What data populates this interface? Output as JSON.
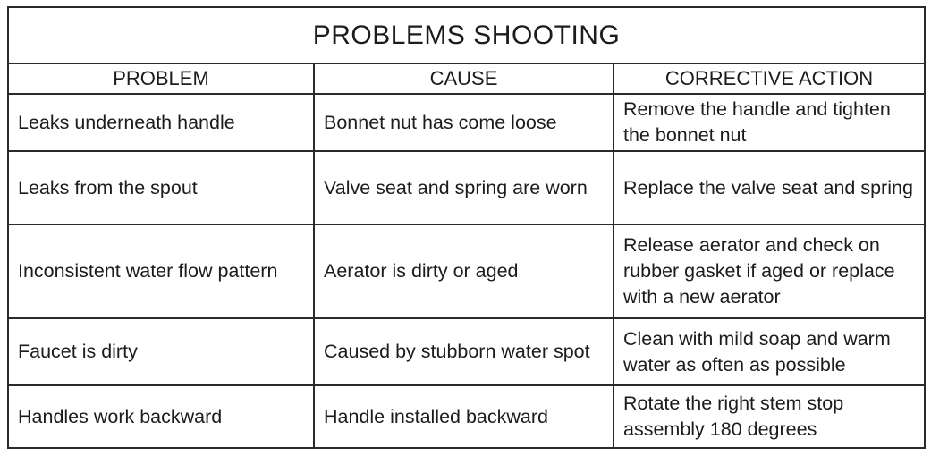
{
  "colors": {
    "border": "#2a2a2a",
    "background": "#ffffff",
    "text": "#1c1c1c"
  },
  "table": {
    "title": "PROBLEMS SHOOTING",
    "columns": {
      "problem": "PROBLEM",
      "cause": "CAUSE",
      "action": "CORRECTIVE ACTION"
    },
    "rows": [
      {
        "problem": "Leaks underneath handle",
        "cause": "Bonnet nut has come loose",
        "action": "Remove the handle and tighten the bonnet nut"
      },
      {
        "problem": "Leaks from the spout",
        "cause": "Valve seat and spring are worn",
        "action": "Replace the valve seat and spring"
      },
      {
        "problem": "Inconsistent water flow pattern",
        "cause": "Aerator is dirty or aged",
        "action": "Release aerator and check on rubber gasket if aged or replace with a new aerator"
      },
      {
        "problem": "Faucet is dirty",
        "cause": "Caused by stubborn water spot",
        "action": "Clean with mild soap and warm water as often as possible"
      },
      {
        "problem": "Handles work backward",
        "cause": "Handle installed backward",
        "action": "Rotate the right stem stop assembly 180 degrees"
      }
    ]
  }
}
